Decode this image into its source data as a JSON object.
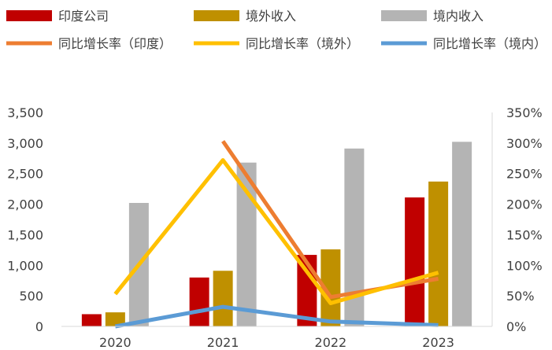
{
  "chart_data": {
    "type": "bar",
    "categories": [
      "2020",
      "2021",
      "2022",
      "2023"
    ],
    "series": [
      {
        "name": "印度公司",
        "kind": "bar",
        "axis": "left",
        "color": "#C00000",
        "values": [
          200,
          800,
          1170,
          2110
        ]
      },
      {
        "name": "境外收入",
        "kind": "bar",
        "axis": "left",
        "color": "#BF9000",
        "values": [
          230,
          910,
          1260,
          2370
        ]
      },
      {
        "name": "境内收入",
        "kind": "bar",
        "axis": "left",
        "color": "#B4B4B4",
        "values": [
          2020,
          2680,
          2910,
          3020
        ]
      },
      {
        "name": "同比增长率（印度）",
        "kind": "line",
        "axis": "right",
        "color": "#ED7D31",
        "values": [
          null,
          303,
          48,
          78
        ]
      },
      {
        "name": "同比增长率（境外）",
        "kind": "line",
        "axis": "right",
        "color": "#FFC000",
        "values": [
          53,
          272,
          38,
          88
        ]
      },
      {
        "name": "同比增长率（境内）",
        "kind": "line",
        "axis": "right",
        "color": "#5B9BD5",
        "values": [
          0,
          32,
          8,
          2
        ]
      }
    ],
    "y_left": {
      "min": 0,
      "max": 3500,
      "step": 500,
      "tick_labels": [
        "0",
        "500",
        "1,000",
        "1,500",
        "2,000",
        "2,500",
        "3,000",
        "3,500"
      ]
    },
    "y_right": {
      "min": 0,
      "max": 350,
      "step": 50,
      "tick_labels": [
        "0%",
        "50%",
        "100%",
        "150%",
        "200%",
        "250%",
        "300%",
        "350%"
      ]
    },
    "grid": false,
    "legend_position": "top"
  }
}
